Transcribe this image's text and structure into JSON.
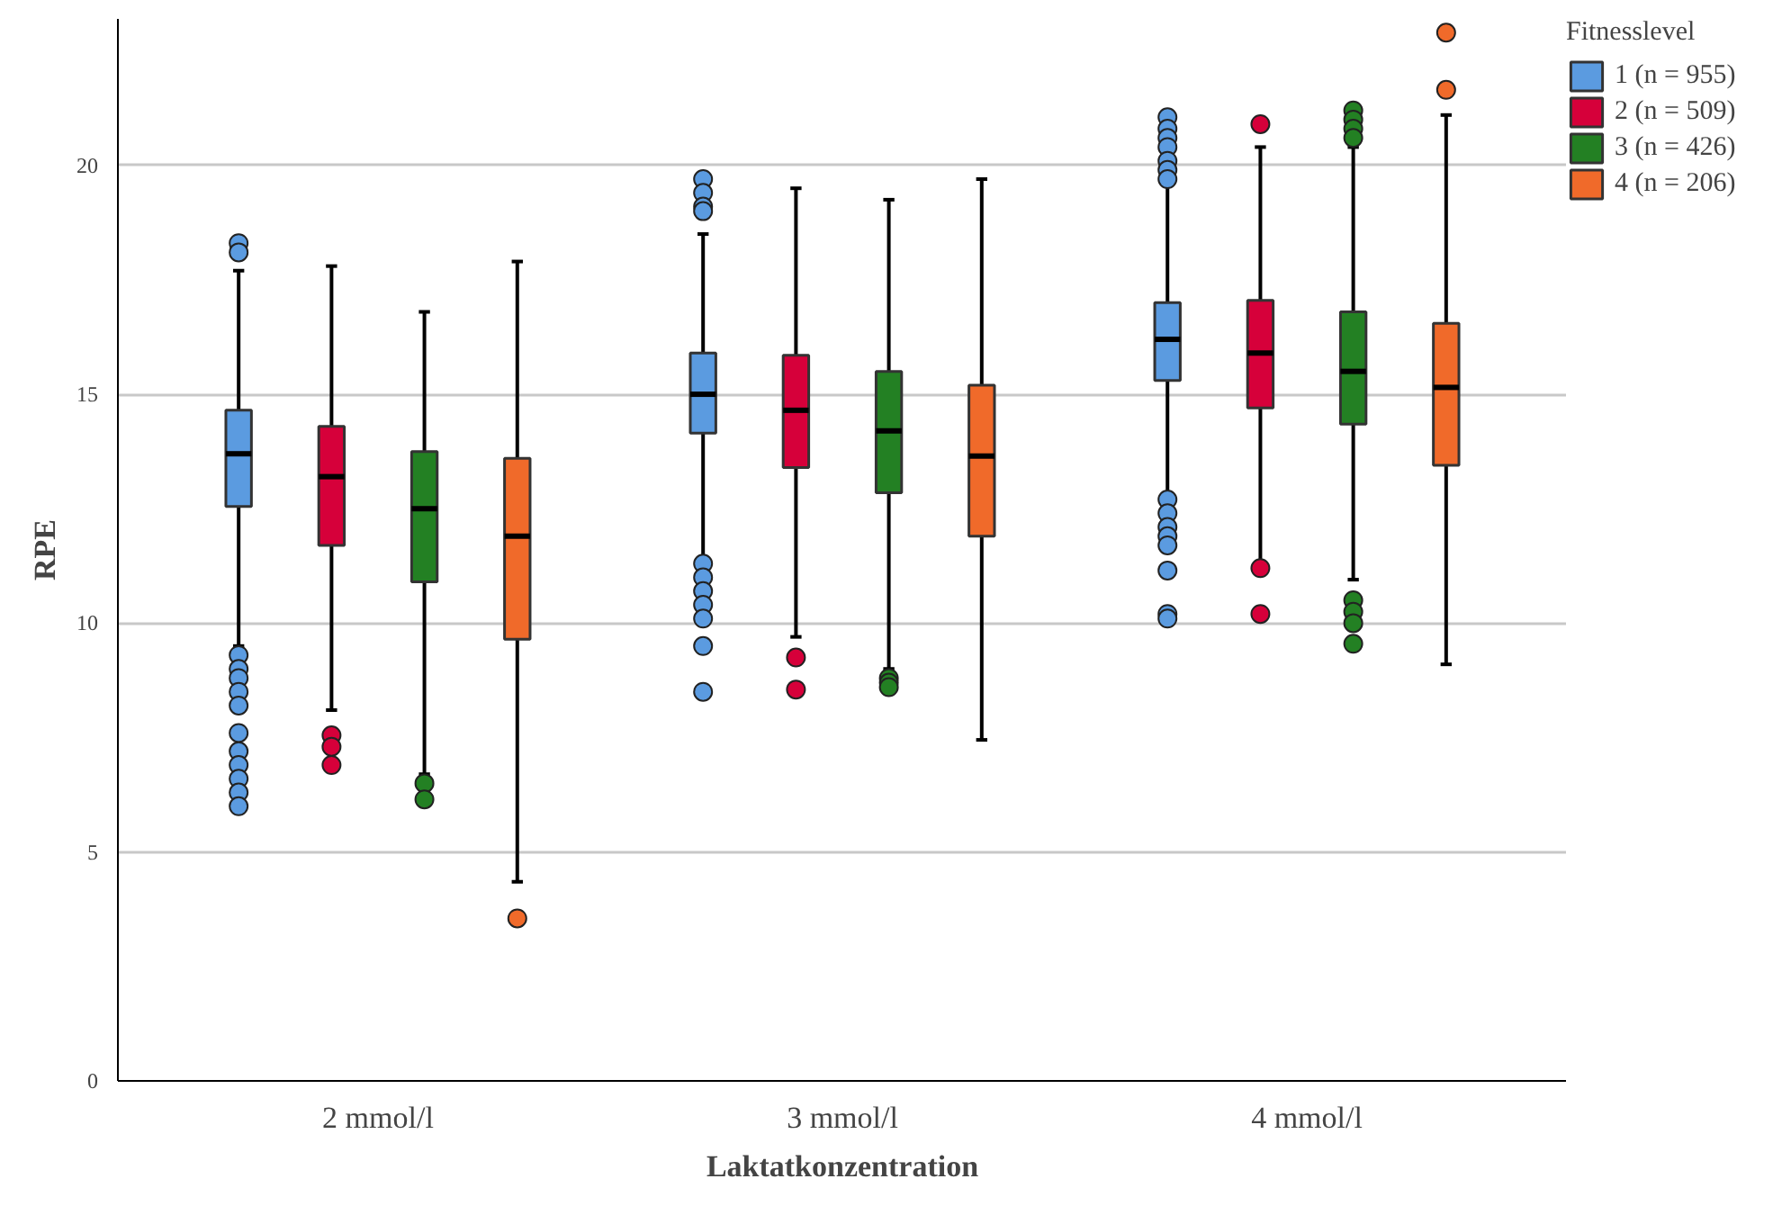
{
  "chart_data": {
    "type": "box",
    "xlabel": "Laktatkonzentration",
    "ylabel": "RPE",
    "legend_title": "Fitnesslevel",
    "categories": [
      "2 mmol/l",
      "3 mmol/l",
      "4 mmol/l"
    ],
    "ylim": [
      0,
      23.2
    ],
    "yticks": [
      0,
      5,
      10,
      15,
      20
    ],
    "grid": "y",
    "legend": "top right",
    "series": [
      {
        "name": "1 (n = 955)",
        "color": "#5b9be0",
        "boxes": [
          {
            "low": 9.5,
            "q1": 12.55,
            "median": 13.7,
            "q3": 14.65,
            "high": 17.7,
            "outliers": [
              18.3,
              18.1,
              9.3,
              9.0,
              8.8,
              8.5,
              8.2,
              7.6,
              7.2,
              6.9,
              6.6,
              6.3,
              6.0
            ]
          },
          {
            "low": 11.4,
            "q1": 14.15,
            "median": 15.0,
            "q3": 15.9,
            "high": 18.5,
            "outliers": [
              19.7,
              19.4,
              19.1,
              19.0,
              11.3,
              11.0,
              10.7,
              10.4,
              10.1,
              9.5,
              8.5
            ]
          },
          {
            "low": 12.8,
            "q1": 15.3,
            "median": 16.2,
            "q3": 17.0,
            "high": 19.6,
            "outliers": [
              21.05,
              20.8,
              20.6,
              20.4,
              20.1,
              19.9,
              19.7,
              12.7,
              12.4,
              12.1,
              11.9,
              11.7,
              11.15,
              10.2,
              10.1
            ]
          }
        ]
      },
      {
        "name": "2 (n = 509)",
        "color": "#d6003a",
        "boxes": [
          {
            "low": 8.1,
            "q1": 11.7,
            "median": 13.2,
            "q3": 14.3,
            "high": 17.8,
            "outliers": [
              7.55,
              7.3,
              6.9
            ]
          },
          {
            "low": 9.7,
            "q1": 13.4,
            "median": 14.65,
            "q3": 15.85,
            "high": 19.5,
            "outliers": [
              9.25,
              8.55
            ]
          },
          {
            "low": 11.3,
            "q1": 14.7,
            "median": 15.9,
            "q3": 17.05,
            "high": 20.4,
            "outliers": [
              20.9,
              11.2,
              10.2
            ]
          }
        ]
      },
      {
        "name": "3 (n = 426)",
        "color": "#238023",
        "boxes": [
          {
            "low": 6.7,
            "q1": 10.9,
            "median": 12.5,
            "q3": 13.75,
            "high": 16.8,
            "outliers": [
              6.5,
              6.15
            ]
          },
          {
            "low": 9.0,
            "q1": 12.85,
            "median": 14.2,
            "q3": 15.5,
            "high": 19.25,
            "outliers": [
              8.8,
              8.7,
              8.6
            ]
          },
          {
            "low": 10.95,
            "q1": 14.35,
            "median": 15.5,
            "q3": 16.8,
            "high": 20.4,
            "outliers": [
              21.2,
              21.0,
              20.8,
              20.6,
              10.5,
              10.25,
              10.0,
              9.55
            ]
          }
        ]
      },
      {
        "name": "4 (n = 206)",
        "color": "#f06a2a",
        "boxes": [
          {
            "low": 4.35,
            "q1": 9.65,
            "median": 11.9,
            "q3": 13.6,
            "high": 17.9,
            "outliers": [
              3.55
            ]
          },
          {
            "low": 7.45,
            "q1": 11.9,
            "median": 13.65,
            "q3": 15.2,
            "high": 19.7
          },
          {
            "low": 9.1,
            "q1": 13.45,
            "median": 15.15,
            "q3": 16.55,
            "high": 21.1,
            "outliers": [
              22.9,
              21.65
            ]
          }
        ]
      }
    ]
  }
}
